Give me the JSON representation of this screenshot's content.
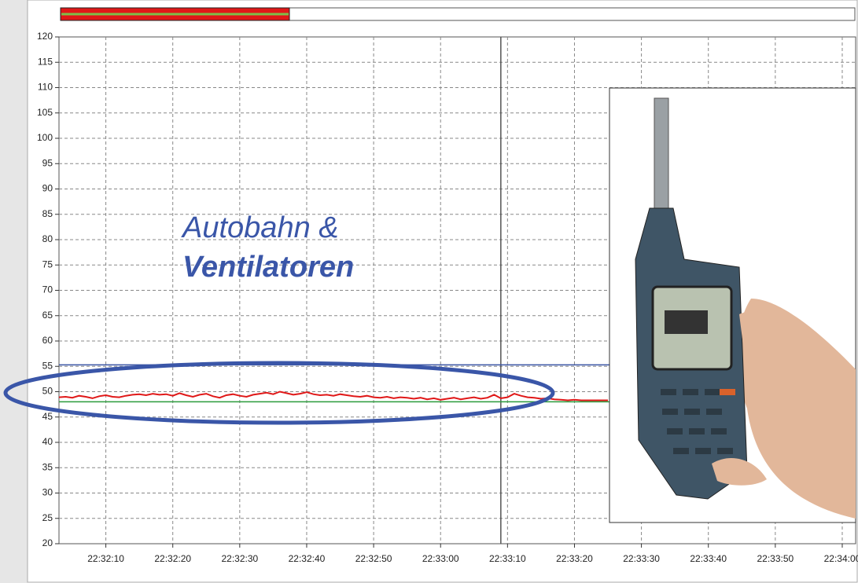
{
  "chart_data": {
    "type": "line",
    "annotations": [
      "Autobahn &",
      "Ventilatoren"
    ],
    "ylim": [
      20,
      120
    ],
    "yticks": [
      20,
      25,
      30,
      35,
      40,
      45,
      50,
      55,
      60,
      65,
      70,
      75,
      80,
      85,
      90,
      95,
      100,
      105,
      110,
      115,
      120
    ],
    "xlim": [
      81123,
      81242
    ],
    "xticks": [
      {
        "value": 81130,
        "label": "22:32:10"
      },
      {
        "value": 81140,
        "label": "22:32:20"
      },
      {
        "value": 81150,
        "label": "22:32:30"
      },
      {
        "value": 81160,
        "label": "22:32:40"
      },
      {
        "value": 81170,
        "label": "22:32:50"
      },
      {
        "value": 81180,
        "label": "22:33:00"
      },
      {
        "value": 81190,
        "label": "22:33:10"
      },
      {
        "value": 81200,
        "label": "22:33:20"
      },
      {
        "value": 81210,
        "label": "22:33:30"
      },
      {
        "value": 81220,
        "label": "22:33:40"
      },
      {
        "value": 81230,
        "label": "22:33:50"
      },
      {
        "value": 81240,
        "label": "22:34:00"
      }
    ],
    "grid": true,
    "cursor_x": 81189,
    "reference_lines": [
      {
        "value": 55.3,
        "color": "#3a55a5"
      },
      {
        "value": 48,
        "color": "#2a9a3a"
      }
    ],
    "series": [
      {
        "color": "#e01818",
        "x": [
          81123,
          81124,
          81125,
          81126,
          81127,
          81128,
          81129,
          81130,
          81131,
          81132,
          81133,
          81134,
          81135,
          81136,
          81137,
          81138,
          81139,
          81140,
          81141,
          81142,
          81143,
          81144,
          81145,
          81146,
          81147,
          81148,
          81149,
          81150,
          81151,
          81152,
          81153,
          81154,
          81155,
          81156,
          81157,
          81158,
          81159,
          81160,
          81161,
          81162,
          81163,
          81164,
          81165,
          81166,
          81167,
          81168,
          81169,
          81170,
          81171,
          81172,
          81173,
          81174,
          81175,
          81176,
          81177,
          81178,
          81179,
          81180,
          81181,
          81182,
          81183,
          81184,
          81185,
          81186,
          81187,
          81188,
          81189,
          81190,
          81191,
          81192,
          81193,
          81194,
          81195,
          81196,
          81197,
          81198,
          81199,
          81200,
          81201,
          81202,
          81203,
          81204,
          81205
        ],
        "values": [
          48.9,
          49.0,
          48.8,
          49.2,
          49.0,
          48.7,
          49.1,
          49.3,
          49.0,
          48.9,
          49.2,
          49.4,
          49.5,
          49.3,
          49.6,
          49.4,
          49.5,
          49.2,
          49.7,
          49.3,
          49.0,
          49.4,
          49.6,
          49.1,
          48.8,
          49.3,
          49.5,
          49.2,
          49.0,
          49.4,
          49.6,
          49.8,
          49.5,
          50.0,
          49.7,
          49.4,
          49.6,
          49.9,
          49.5,
          49.3,
          49.4,
          49.2,
          49.5,
          49.3,
          49.1,
          49.0,
          49.2,
          48.9,
          48.8,
          49.0,
          48.7,
          48.9,
          48.8,
          48.6,
          48.8,
          48.5,
          48.7,
          48.4,
          48.6,
          48.8,
          48.5,
          48.7,
          48.9,
          48.6,
          48.8,
          49.4,
          48.7,
          48.9,
          49.6,
          49.2,
          48.9,
          48.8,
          48.6,
          48.7,
          48.5,
          48.4,
          48.3,
          48.4,
          48.3,
          48.3,
          48.3,
          48.3,
          48.3
        ]
      }
    ]
  }
}
